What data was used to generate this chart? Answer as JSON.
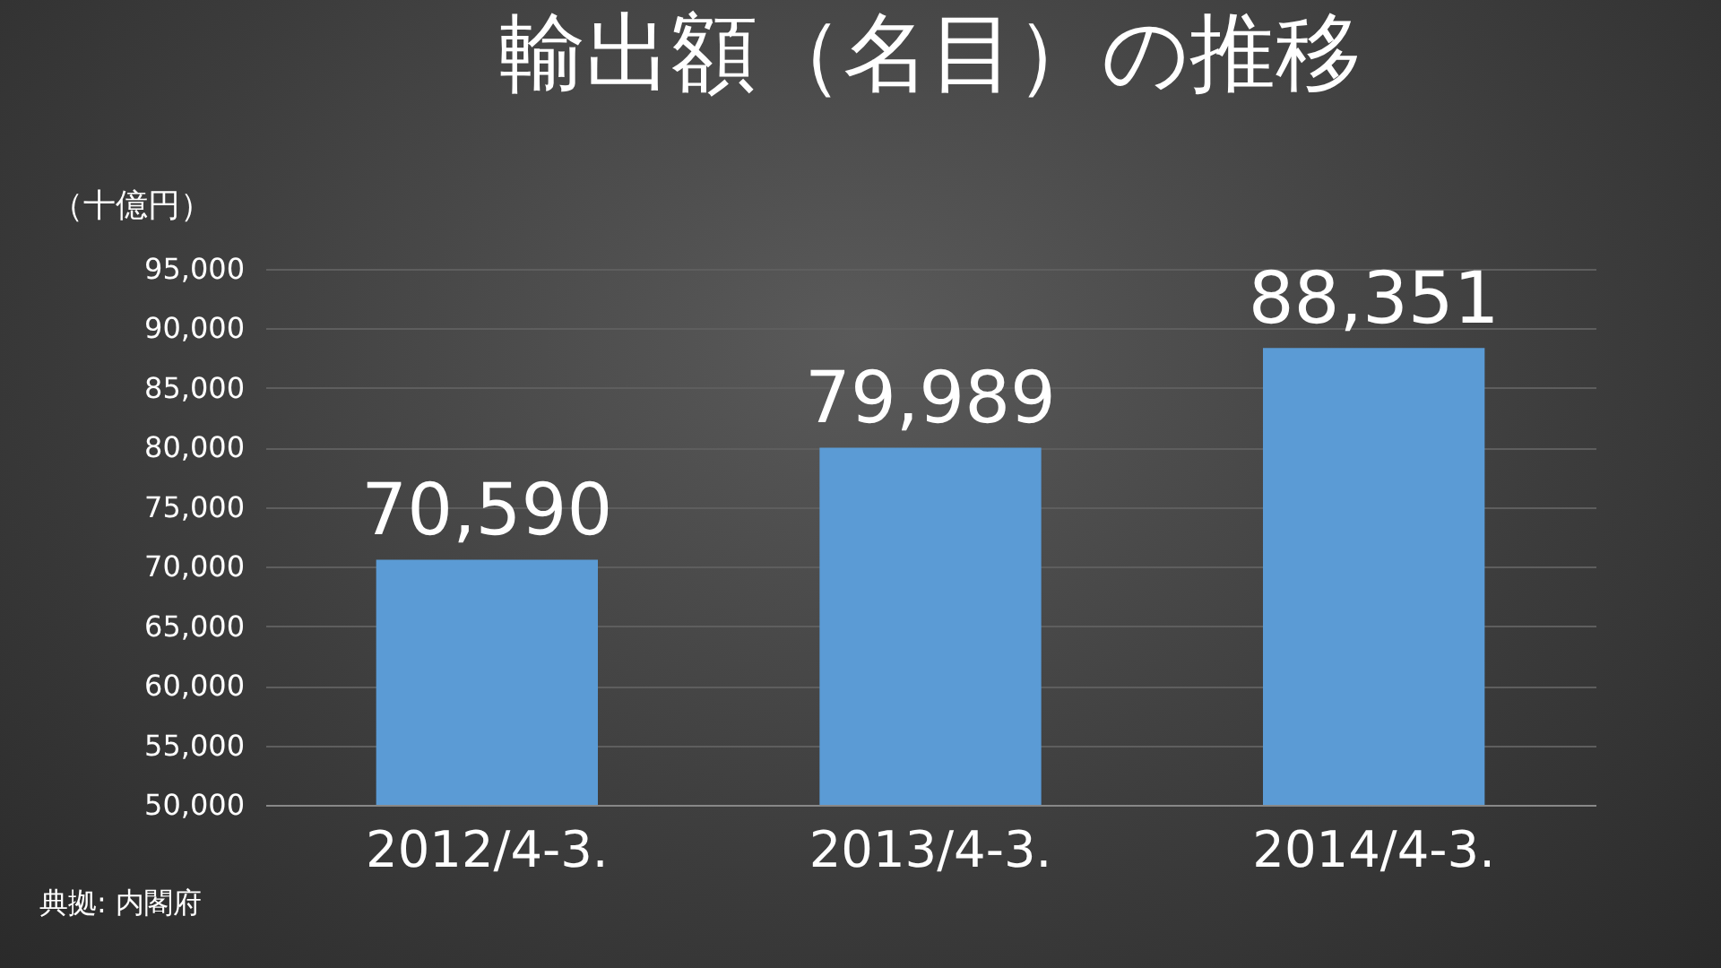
{
  "chart_data": {
    "type": "bar",
    "title": "輸出額（名目）の推移",
    "ylabel": "（十億円）",
    "categories": [
      "2012/4-3.",
      "2013/4-3.",
      "2014/4-3."
    ],
    "values": [
      70590,
      79989,
      88351
    ],
    "color": "#5b9bd5",
    "ylim": [
      50000,
      95000
    ],
    "yticks": [
      {
        "value": 50000,
        "label": "50,000"
      },
      {
        "value": 55000,
        "label": "55,000"
      },
      {
        "value": 60000,
        "label": "60,000"
      },
      {
        "value": 65000,
        "label": "65,000"
      },
      {
        "value": 70000,
        "label": "70,000"
      },
      {
        "value": 75000,
        "label": "75,000"
      },
      {
        "value": 80000,
        "label": "80,000"
      },
      {
        "value": 85000,
        "label": "85,000"
      },
      {
        "value": 90000,
        "label": "90,000"
      },
      {
        "value": 95000,
        "label": "95,000"
      }
    ],
    "grid": true,
    "value_labels": [
      "70,590",
      "79,989",
      "88,351"
    ],
    "annotations": [
      "典拠: 内閣府"
    ]
  }
}
